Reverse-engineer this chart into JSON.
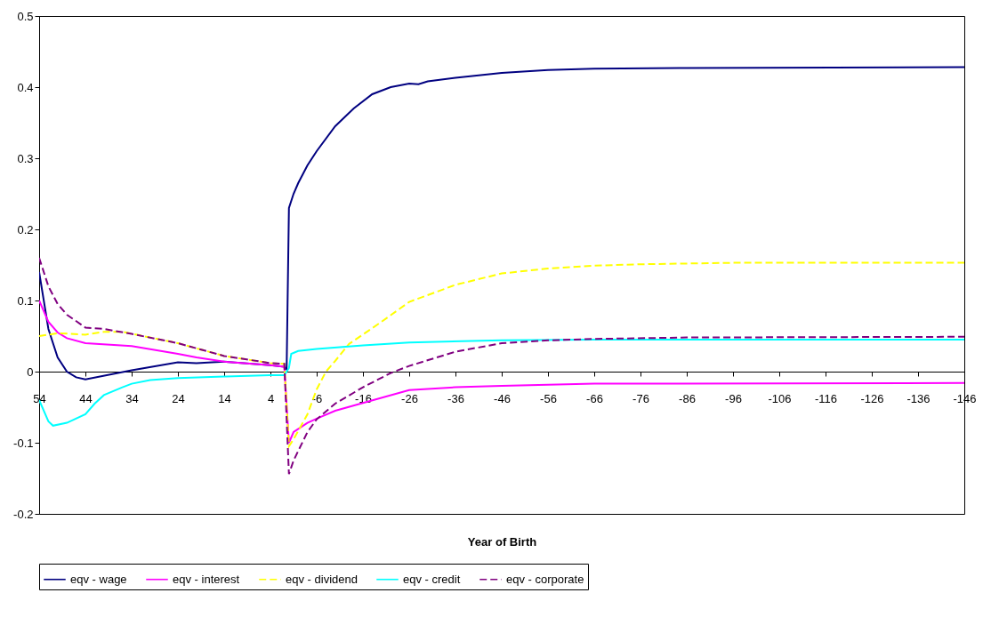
{
  "chart_data": {
    "type": "line",
    "xlabel": "Year of Birth",
    "xlim": [
      54,
      -146
    ],
    "xticks": [
      54,
      44,
      34,
      24,
      14,
      4,
      -6,
      -16,
      -26,
      -36,
      -46,
      -56,
      -66,
      -76,
      -86,
      -96,
      -106,
      -116,
      -126,
      -136,
      -146
    ],
    "ylim": [
      -0.2,
      0.5
    ],
    "yticks": [
      -0.2,
      -0.1,
      {
        "value": 0,
        "label": "0"
      },
      0.1,
      0.2,
      0.3,
      0.4,
      0.5
    ],
    "grid": false,
    "legend": "bottom",
    "marker": "none",
    "series": [
      {
        "name": "eqv - wage",
        "color": "#000080",
        "line_style": "solid",
        "x": [
          54,
          52,
          50,
          48,
          46,
          44,
          34,
          24,
          20,
          14,
          4,
          1,
          0.5,
          0,
          -1,
          -2,
          -4,
          -6,
          -10,
          -14,
          -18,
          -22,
          -26,
          -28,
          -30,
          -36,
          -46,
          -56,
          -66,
          -86,
          -146
        ],
        "values": [
          0.14,
          0.06,
          0.02,
          0.0,
          -0.008,
          -0.011,
          0.002,
          0.013,
          0.012,
          0.014,
          0.009,
          0.007,
          0.003,
          0.23,
          0.25,
          0.265,
          0.29,
          0.31,
          0.345,
          0.37,
          0.39,
          0.4,
          0.405,
          0.404,
          0.408,
          0.413,
          0.42,
          0.424,
          0.426,
          0.427,
          0.428
        ]
      },
      {
        "name": "eqv - interest",
        "color": "#ff00ff",
        "line_style": "solid",
        "x": [
          54,
          52,
          50,
          48,
          44,
          34,
          24,
          20,
          14,
          4,
          1,
          0,
          -1,
          -4,
          -6,
          -10,
          -16,
          -26,
          -36,
          -46,
          -66,
          -146
        ],
        "values": [
          0.1,
          0.07,
          0.055,
          0.047,
          0.04,
          0.036,
          0.025,
          0.02,
          0.014,
          0.009,
          0.007,
          -0.1,
          -0.085,
          -0.072,
          -0.066,
          -0.055,
          -0.044,
          -0.026,
          -0.022,
          -0.02,
          -0.017,
          -0.016
        ]
      },
      {
        "name": "eqv - dividend",
        "color": "#ffff00",
        "line_style": "dashed",
        "x": [
          54,
          50,
          44,
          40,
          36,
          24,
          14,
          4,
          1,
          0,
          -1,
          -4,
          -6,
          -8,
          -10,
          -13,
          -20,
          -26,
          -36,
          -46,
          -56,
          -66,
          -76,
          -86,
          -96,
          -146
        ],
        "values": [
          0.05,
          0.054,
          0.052,
          0.056,
          0.056,
          0.04,
          0.022,
          0.012,
          0.011,
          -0.105,
          -0.095,
          -0.06,
          -0.025,
          0.0,
          0.015,
          0.039,
          0.07,
          0.098,
          0.122,
          0.138,
          0.145,
          0.149,
          0.151,
          0.152,
          0.153,
          0.153
        ]
      },
      {
        "name": "eqv - credit",
        "color": "#00ffff",
        "line_style": "solid",
        "x": [
          54,
          52,
          51,
          48,
          44,
          42,
          40,
          36,
          34,
          30,
          24,
          14,
          4,
          1,
          0,
          -0.5,
          -2,
          -6,
          -16,
          -26,
          -46,
          -66,
          -146
        ],
        "values": [
          -0.04,
          -0.07,
          -0.076,
          -0.072,
          -0.06,
          -0.045,
          -0.033,
          -0.022,
          -0.017,
          -0.012,
          -0.009,
          -0.007,
          -0.005,
          -0.005,
          0.005,
          0.025,
          0.029,
          0.032,
          0.037,
          0.041,
          0.044,
          0.045,
          0.045
        ]
      },
      {
        "name": "eqv - corporate",
        "color": "#800080",
        "line_style": "dashed",
        "x": [
          54,
          52,
          50,
          48,
          44,
          40,
          34,
          24,
          14,
          4,
          1,
          0,
          -1,
          -4,
          -6,
          -10,
          -16,
          -22,
          -26,
          -36,
          -46,
          -56,
          -66,
          -86,
          -146
        ],
        "values": [
          0.16,
          0.12,
          0.095,
          0.08,
          0.062,
          0.06,
          0.053,
          0.04,
          0.022,
          0.012,
          0.011,
          -0.144,
          -0.125,
          -0.085,
          -0.067,
          -0.045,
          -0.022,
          -0.002,
          0.008,
          0.028,
          0.04,
          0.044,
          0.046,
          0.048,
          0.049
        ]
      }
    ]
  }
}
